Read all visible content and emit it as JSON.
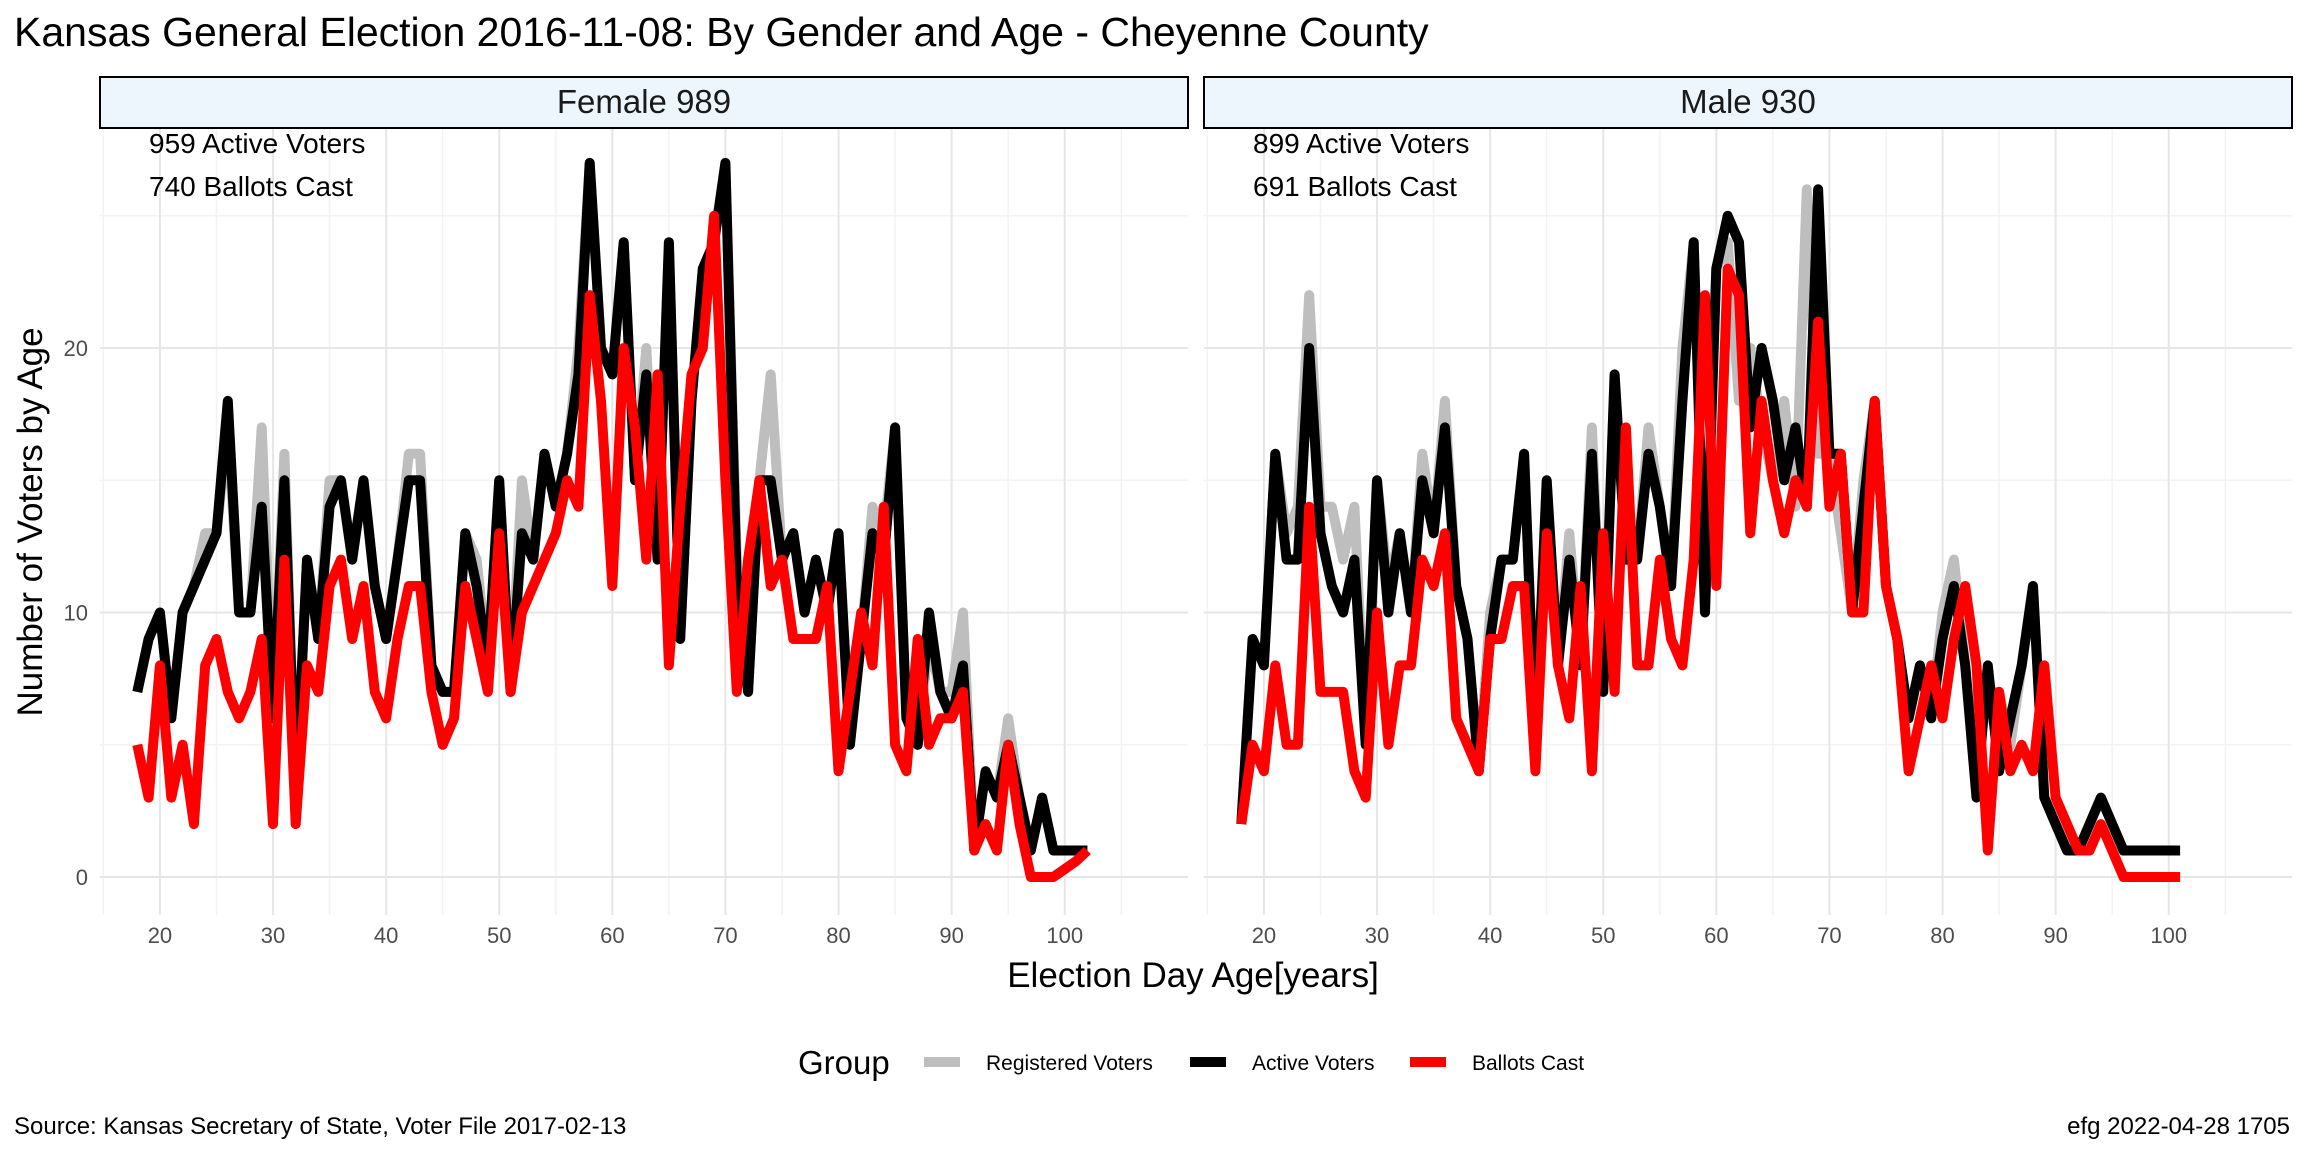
{
  "title": "Kansas General Election 2016-11-08:  By Gender and Age - Cheyenne County",
  "caption_left": "Source:  Kansas Secretary of State, Voter File  2017-02-13",
  "caption_right": "efg 2022-04-28 1705",
  "colors": {
    "registered": "#bebebe",
    "active": "#000000",
    "ballots": "#ff0000",
    "strip_fill": "#eef6fd"
  },
  "chart_data": {
    "type": "line",
    "xlabel": "Election Day Age[years]",
    "ylabel": "Number of Voters by Age",
    "xlim": [
      18,
      102
    ],
    "ylim": [
      0,
      27
    ],
    "x_ticks": [
      20,
      30,
      40,
      50,
      60,
      70,
      80,
      90,
      100
    ],
    "y_ticks": [
      0,
      10,
      20
    ],
    "grid": true,
    "legend": {
      "title": "Group",
      "position": "bottom",
      "entries": [
        "Registered Voters",
        "Active Voters",
        "Ballots Cast"
      ]
    },
    "panels": [
      {
        "label": "Female 989",
        "annotations": [
          "959 Active Voters",
          "740 Ballots Cast"
        ],
        "x": [
          18,
          19,
          20,
          21,
          22,
          23,
          24,
          25,
          26,
          27,
          28,
          29,
          30,
          31,
          32,
          33,
          34,
          35,
          36,
          37,
          38,
          39,
          40,
          41,
          42,
          43,
          44,
          45,
          46,
          47,
          48,
          49,
          50,
          51,
          52,
          53,
          54,
          55,
          56,
          57,
          58,
          59,
          60,
          61,
          62,
          63,
          64,
          65,
          66,
          67,
          68,
          69,
          70,
          71,
          72,
          73,
          74,
          75,
          76,
          77,
          78,
          79,
          80,
          81,
          82,
          83,
          84,
          85,
          86,
          87,
          88,
          89,
          90,
          91,
          92,
          93,
          94,
          95,
          96,
          97,
          98,
          99,
          100,
          101,
          102
        ],
        "series": [
          {
            "name": "Registered Voters",
            "values": [
              7,
              9,
              10,
              6,
              10,
              11,
              13,
              13,
              17,
              10,
              10,
              17,
              6,
              16,
              3,
              12,
              9,
              15,
              15,
              12,
              15,
              11,
              9,
              12,
              16,
              16,
              8,
              7,
              7,
              13,
              12,
              8,
              15,
              7,
              15,
              12,
              16,
              14,
              16,
              20,
              27,
              20,
              19,
              24,
              15,
              20,
              12,
              24,
              9,
              18,
              23,
              24,
              27,
              12,
              7,
              15,
              19,
              12,
              13,
              10,
              12,
              10,
              13,
              5,
              9,
              14,
              13,
              17,
              6,
              5,
              9,
              7,
              7,
              10,
              1,
              4,
              3,
              6,
              3,
              1,
              3,
              1,
              1,
              1,
              1
            ]
          },
          {
            "name": "Active Voters",
            "values": [
              7,
              9,
              10,
              6,
              10,
              11,
              12,
              13,
              18,
              10,
              10,
              14,
              6,
              15,
              3,
              12,
              9,
              14,
              15,
              12,
              15,
              11,
              9,
              12,
              15,
              15,
              8,
              7,
              7,
              13,
              11,
              8,
              15,
              7,
              13,
              12,
              16,
              14,
              16,
              19,
              27,
              20,
              19,
              24,
              15,
              19,
              12,
              24,
              9,
              18,
              23,
              24,
              27,
              11,
              7,
              15,
              15,
              12,
              13,
              10,
              12,
              10,
              13,
              5,
              9,
              13,
              12,
              17,
              6,
              5,
              10,
              7,
              6,
              8,
              1,
              4,
              3,
              5,
              3,
              1,
              3,
              1,
              1,
              1,
              1
            ]
          },
          {
            "name": "Ballots Cast",
            "values": [
              5,
              3,
              8,
              3,
              5,
              2,
              8,
              9,
              7,
              6,
              7,
              9,
              2,
              12,
              2,
              8,
              7,
              11,
              12,
              9,
              11,
              7,
              6,
              9,
              11,
              11,
              7,
              5,
              6,
              11,
              9,
              7,
              13,
              7,
              10,
              11,
              12,
              13,
              15,
              14,
              22,
              18,
              11,
              20,
              17,
              12,
              19,
              8,
              14,
              19,
              20,
              25,
              15,
              7,
              12,
              15,
              11,
              12,
              9,
              9,
              9,
              11,
              4,
              7,
              10,
              8,
              14,
              5,
              4,
              9,
              5,
              6,
              6,
              7,
              1,
              2,
              1,
              5,
              2,
              0,
              0,
              0,
              0.3,
              0.6,
              1
            ]
          }
        ]
      },
      {
        "label": "Male 930",
        "annotations": [
          "899 Active Voters",
          "691 Ballots Cast"
        ],
        "x": [
          18,
          19,
          20,
          21,
          22,
          23,
          24,
          25,
          26,
          27,
          28,
          29,
          30,
          31,
          32,
          33,
          34,
          35,
          36,
          37,
          38,
          39,
          40,
          41,
          42,
          43,
          44,
          45,
          46,
          47,
          48,
          49,
          50,
          51,
          52,
          53,
          54,
          55,
          56,
          57,
          58,
          59,
          60,
          61,
          62,
          63,
          64,
          65,
          66,
          67,
          68,
          69,
          70,
          71,
          72,
          73,
          74,
          75,
          76,
          77,
          78,
          79,
          80,
          81,
          82,
          83,
          84,
          85,
          86,
          87,
          88,
          89,
          90,
          91,
          92,
          93,
          94,
          95,
          96,
          97,
          98,
          99,
          100,
          101
        ],
        "series": [
          {
            "name": "Registered Voters",
            "values": [
              2,
              9,
              8,
              16,
              13,
              14,
              22,
              14,
              14,
              12,
              14,
              5,
              15,
              11,
              13,
              10,
              16,
              13,
              18,
              11,
              9,
              4,
              10,
              12,
              12,
              16,
              5,
              15,
              8,
              13,
              8,
              17,
              7,
              19,
              12,
              12,
              17,
              14,
              11,
              20,
              24,
              10,
              23,
              24,
              18,
              20,
              17,
              15,
              18,
              14,
              26,
              16,
              16,
              13,
              10,
              15,
              18,
              11,
              9,
              6,
              8,
              6,
              10,
              12,
              8,
              4,
              7,
              7,
              5,
              8,
              11,
              3,
              2,
              1,
              1,
              2,
              3,
              2,
              1,
              1,
              1,
              1,
              1,
              1
            ]
          },
          {
            "name": "Active Voters",
            "values": [
              2,
              9,
              8,
              16,
              12,
              12,
              20,
              13,
              11,
              10,
              12,
              5,
              15,
              10,
              13,
              10,
              15,
              13,
              17,
              11,
              9,
              4,
              9,
              12,
              12,
              16,
              5,
              15,
              8,
              12,
              8,
              16,
              7,
              19,
              12,
              12,
              16,
              14,
              11,
              18,
              24,
              10,
              23,
              25,
              24,
              17,
              20,
              18,
              15,
              17,
              14,
              26,
              16,
              16,
              10,
              14,
              18,
              11,
              9,
              6,
              8,
              6,
              9,
              11,
              8,
              3,
              8,
              4,
              6,
              8,
              11,
              3,
              2,
              1,
              1,
              2,
              3,
              2,
              1,
              1,
              1,
              1,
              1,
              1
            ]
          },
          {
            "name": "Ballots Cast",
            "values": [
              2,
              5,
              4,
              8,
              5,
              5,
              14,
              7,
              7,
              7,
              4,
              3,
              10,
              5,
              8,
              8,
              12,
              11,
              13,
              6,
              5,
              4,
              9,
              9,
              11,
              11,
              4,
              13,
              8,
              6,
              11,
              4,
              13,
              7,
              17,
              8,
              8,
              12,
              9,
              8,
              12,
              22,
              11,
              23,
              22,
              13,
              18,
              15,
              13,
              15,
              14,
              21,
              14,
              16,
              10,
              10,
              18,
              11,
              9,
              4,
              6,
              8,
              6,
              9,
              11,
              8,
              1,
              7,
              4,
              5,
              4,
              8,
              3,
              2,
              1,
              1,
              2,
              1,
              0,
              0,
              0,
              0,
              0,
              0
            ]
          }
        ]
      }
    ]
  }
}
